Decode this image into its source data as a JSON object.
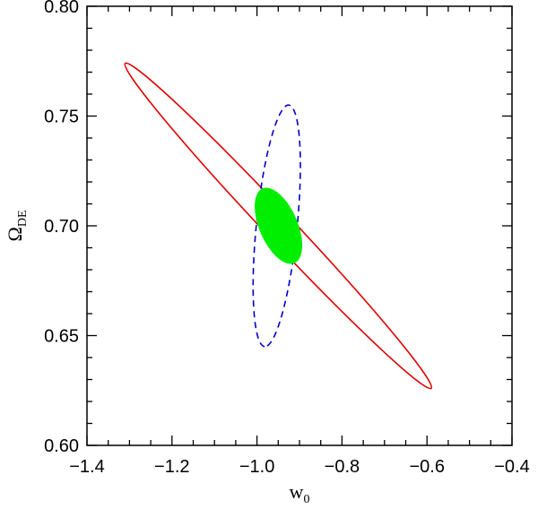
{
  "chart_data": {
    "type": "contour",
    "xlabel": "w",
    "xlabel_sub": "0",
    "ylabel": "Ω",
    "ylabel_sub": "DE",
    "xlim": [
      -1.4,
      -0.4
    ],
    "ylim": [
      0.6,
      0.8
    ],
    "x_ticks": [
      -1.4,
      -1.2,
      -1.0,
      -0.8,
      -0.6,
      -0.4
    ],
    "x_tick_labels": [
      "−1.4",
      "−1.2",
      "−1.0",
      "−0.8",
      "−0.6",
      "−0.4"
    ],
    "y_ticks": [
      0.6,
      0.65,
      0.7,
      0.75,
      0.8
    ],
    "y_tick_labels": [
      "0.60",
      "0.65",
      "0.70",
      "0.75",
      "0.80"
    ],
    "x_minor_step": 0.05,
    "y_minor_step": 0.01,
    "grid": false,
    "legend": "none",
    "series": [
      {
        "style": "solid-outline",
        "color": "#e00000",
        "center": [
          -0.95,
          0.7
        ],
        "endpoints": [
          [
            -1.31,
            0.774
          ],
          [
            -0.59,
            0.626
          ]
        ],
        "half_width": 0.033
      },
      {
        "style": "dashed-outline",
        "color": "#0000cc",
        "center": [
          -0.945,
          0.7
        ],
        "endpoints": [
          [
            -0.925,
            0.755
          ],
          [
            -0.982,
            0.645
          ]
        ],
        "half_width": 0.048
      },
      {
        "style": "filled",
        "color": "#00ee00",
        "center": [
          -0.952,
          0.7
        ],
        "endpoints": [
          [
            -0.987,
            0.717
          ],
          [
            -0.912,
            0.683
          ]
        ],
        "half_width": 0.045
      }
    ]
  }
}
